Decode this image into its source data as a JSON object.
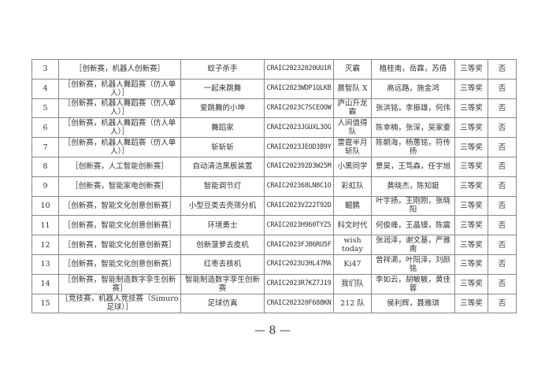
{
  "rows": [
    {
      "no": "3",
      "category": "［创新赛，机器人创新赛］",
      "project": "蚊子杀手",
      "code": "CRAIC20232020UU1R",
      "team": "灭霸",
      "members": "植桂南，岳霖，苏倩",
      "award": "三等奖",
      "flag": "否"
    },
    {
      "no": "4",
      "category": "［创新赛，机器人舞蹈赛（仿人单人）］",
      "project": "一起来跳舞",
      "code": "CRAIC2023WDP1QLKB",
      "team": "晨智队 X",
      "members": "高远路，施金鸿",
      "award": "三等奖",
      "flag": "否"
    },
    {
      "no": "5",
      "category": "［创新赛，机器人舞蹈赛（仿人单人）］",
      "project": "爱跳舞的小坤",
      "code": "CRAIC2023C7SCEOOW",
      "team": "庐山升龙霸",
      "members": "张洪铭，李振雄，何伟",
      "award": "三等奖",
      "flag": "否"
    },
    {
      "no": "6",
      "category": "［创新赛，机器人舞蹈赛（仿人单人）］",
      "project": "舞蹈家",
      "code": "CRAIC2023JGUXL3OG",
      "team": "人间值得队",
      "members": "陈幸楠，张深，吴家豪",
      "award": "三等奖",
      "flag": "否"
    },
    {
      "no": "7",
      "category": "［创新赛，机器人舞蹈赛（仿人单人）］",
      "project": "斩斩斩",
      "code": "CRAIC2023JEOD3B9Y",
      "team": "雷霆半月斩队",
      "members": "陈朝海，杨蕙铭，符传扬",
      "award": "三等奖",
      "flag": "否"
    },
    {
      "no": "8",
      "category": "［创新赛，人工智能创新赛］",
      "project": "自动清洁黑板装置",
      "code": "CRAIC202392D3W25M",
      "team": "小黑同学",
      "members": "景昊，王笃森，任宇旭",
      "award": "三等奖",
      "flag": "否"
    },
    {
      "no": "9",
      "category": "［创新赛，智能家电创新赛］",
      "project": "智能调节灯",
      "code": "CRAIC202368LN8C1O",
      "team": "彩虹队",
      "members": "黄晓杰，陈知鋌",
      "award": "三等奖",
      "flag": "否"
    },
    {
      "no": "10",
      "category": "［创新赛，智能文化创意创新赛］",
      "project": "小型豆类去壳筛分机",
      "code": "CRAIC2023VZ22T92D",
      "team": "鲲鹏",
      "members": "叶宇扬，王刚刚，张晓阳",
      "award": "三等奖",
      "flag": "否"
    },
    {
      "no": "11",
      "category": "［创新赛，智能文化创意创新赛］",
      "project": "环境勇士",
      "code": "CRAIC2023H960TYZS",
      "team": "科文时代",
      "members": "何俊峰，王晶镆，陈震",
      "award": "三等奖",
      "flag": "否"
    },
    {
      "no": "12",
      "category": "［创新赛，智能文化创意创新赛］",
      "project": "创新菠萝去皮机",
      "code": "CRAIC2023FJB6RU5F",
      "team": "wish today",
      "members": "张润泽，谢文基，严雅南",
      "award": "三等奖",
      "flag": "否"
    },
    {
      "no": "13",
      "category": "［创新赛，智能文化创意创新赛］",
      "project": "红枣去核机",
      "code": "CRAIC2023U3HL47MA",
      "team": "Ki47",
      "members": "曾祥滴，叶阳泽，刘颜铭",
      "award": "三等奖",
      "flag": "否"
    },
    {
      "no": "14",
      "category": "［创新赛，智能制造数字孪生创新赛］",
      "project": "智能制造数字孪生创新赛",
      "code": "CRAIC2023R7KZ7J19",
      "team": "我们队",
      "members": "李如云，胡敏敏，黄佳蓉",
      "award": "三等奖",
      "flag": "否"
    },
    {
      "no": "15",
      "category": "［竞技赛，机器人竞技赛（Simuro 足球）］",
      "project": "足球仿真",
      "code": "CRAIC202320F688KN",
      "team": "212 队",
      "members": "侯利辉，聂雅琪",
      "award": "三等奖",
      "flag": "否"
    }
  ],
  "footer": {
    "page": "— 8 —"
  }
}
